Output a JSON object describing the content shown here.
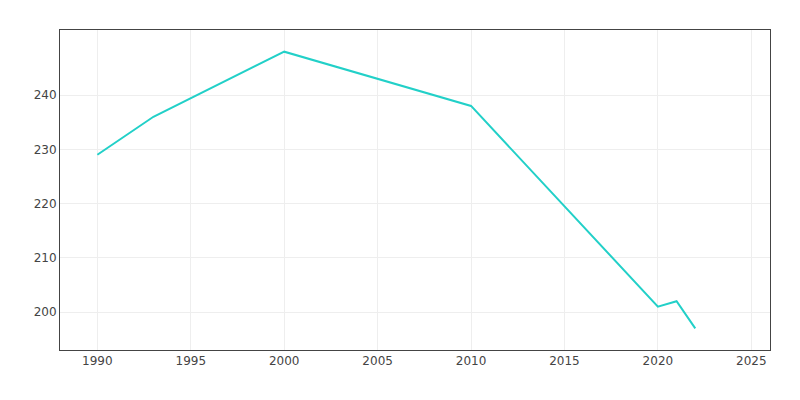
{
  "chart_data": {
    "type": "line",
    "x": [
      1990,
      1993,
      2000,
      2010,
      2020,
      2021,
      2022
    ],
    "values": [
      229,
      236,
      248,
      238,
      201,
      202,
      197
    ],
    "color": "#22d0c8",
    "xlim": [
      1988,
      2026
    ],
    "ylim": [
      193,
      252
    ],
    "xticks": [
      1990,
      1995,
      2000,
      2005,
      2010,
      2015,
      2020,
      2025
    ],
    "yticks": [
      200,
      210,
      220,
      230,
      240
    ],
    "grid": true
  }
}
